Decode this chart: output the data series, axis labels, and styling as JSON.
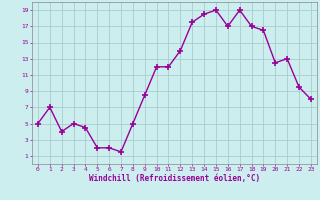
{
  "x": [
    0,
    1,
    2,
    3,
    4,
    5,
    6,
    7,
    8,
    9,
    10,
    11,
    12,
    13,
    14,
    15,
    16,
    17,
    18,
    19,
    20,
    21,
    22,
    23
  ],
  "y": [
    5,
    7,
    4,
    5,
    4.5,
    2,
    2,
    1.5,
    5,
    8.5,
    12,
    12,
    14,
    17.5,
    18.5,
    19,
    17,
    19,
    17,
    16.5,
    12.5,
    13,
    9.5,
    8
  ],
  "line_color": "#990099",
  "marker_color": "#990099",
  "bg_color": "#cceeee",
  "grid_color": "#aacccc",
  "xlabel": "Windchill (Refroidissement éolien,°C)",
  "xlabel_color": "#990099",
  "tick_color": "#990099",
  "spine_color": "#888888",
  "xlim": [
    -0.5,
    23.5
  ],
  "ylim": [
    0,
    20
  ],
  "yticks": [
    1,
    3,
    5,
    7,
    9,
    11,
    13,
    15,
    17,
    19
  ],
  "xticks": [
    0,
    1,
    2,
    3,
    4,
    5,
    6,
    7,
    8,
    9,
    10,
    11,
    12,
    13,
    14,
    15,
    16,
    17,
    18,
    19,
    20,
    21,
    22,
    23
  ],
  "marker_size": 4,
  "line_width": 1.0
}
